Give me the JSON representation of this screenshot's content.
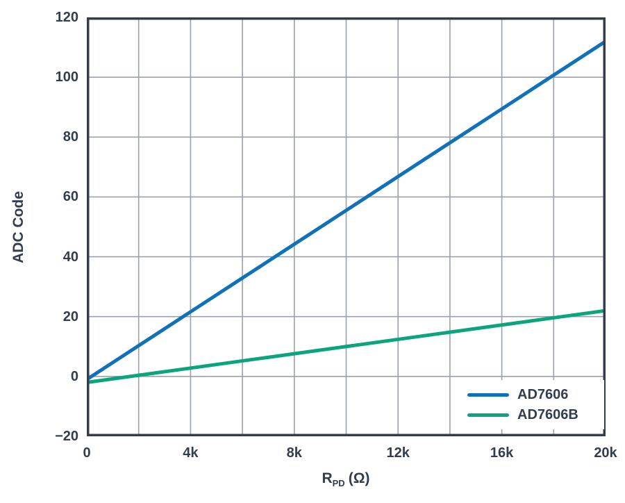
{
  "page": {
    "background": "#FFFFFF"
  },
  "colors": {
    "axis_and_text": "#333D4E",
    "gridline": "#9AA0AC",
    "legend_background": "#FFFFFF"
  },
  "chart_data": {
    "type": "line",
    "title": "",
    "xlabel": {
      "base": "R",
      "sub": "PD",
      "unit": "(Ω)"
    },
    "ylabel": "ADC Code",
    "xlim": [
      0,
      20000
    ],
    "ylim": [
      -20,
      120
    ],
    "x_tick_values": [
      0,
      4000,
      8000,
      12000,
      16000,
      20000
    ],
    "x_tick_labels": [
      "0",
      "4k",
      "8k",
      "12k",
      "16k",
      "20k"
    ],
    "y_tick_values": [
      -20,
      0,
      20,
      40,
      60,
      80,
      100,
      120
    ],
    "y_tick_labels": [
      "−20",
      "0",
      "20",
      "40",
      "60",
      "80",
      "100",
      "120"
    ],
    "x_grid_interval": 2000,
    "y_grid_interval": 20,
    "grid": true,
    "legend_position": "inside-bottom-right",
    "x": [
      0,
      2000,
      4000,
      6000,
      8000,
      10000,
      12000,
      14000,
      16000,
      18000,
      20000
    ],
    "series": [
      {
        "name": "AD7606",
        "color": "#1071B8",
        "values": [
          -1,
          10.3,
          21.6,
          32.9,
          44.2,
          55.5,
          66.8,
          78.1,
          89.4,
          100.7,
          112
        ]
      },
      {
        "name": "AD7606B",
        "color": "#0BA57D",
        "values": [
          -2,
          0.4,
          2.8,
          5.2,
          7.6,
          10,
          12.4,
          14.8,
          17.2,
          19.6,
          22
        ]
      }
    ]
  }
}
